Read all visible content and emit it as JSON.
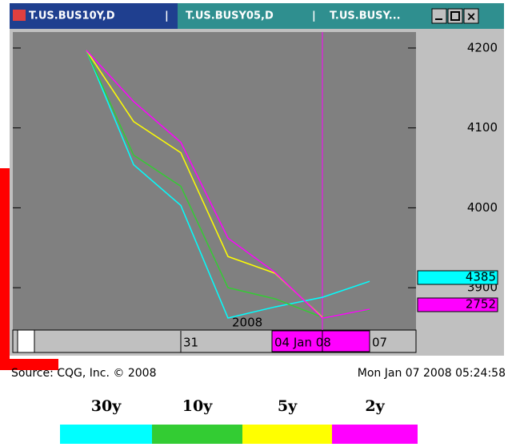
{
  "window": {
    "tabs": [
      "T.US.BUS10Y,D",
      "T.US.BUSY05,D",
      "T.US.BUSY..."
    ]
  },
  "chart_data": {
    "type": "line",
    "categories": [
      null,
      null,
      "31",
      null,
      null,
      "04 Jan 08",
      "07"
    ],
    "annotation": "2008",
    "series": [
      {
        "name": "30y",
        "color": "#00ffff",
        "values": [
          4197,
          4054,
          4003,
          3862,
          3876,
          3888,
          3908
        ]
      },
      {
        "name": "10y",
        "color": "#33cc33",
        "values": [
          4197,
          4066,
          4027,
          3900,
          3886,
          3863,
          3872
        ]
      },
      {
        "name": "5y",
        "color": "#ffff00",
        "values": [
          4197,
          4108,
          4069,
          3939,
          3918,
          3863,
          null
        ]
      },
      {
        "name": "2y",
        "color": "#ff00ff",
        "values": [
          4197,
          4133,
          4082,
          3962,
          3919,
          3862,
          3873
        ]
      }
    ],
    "ylim": [
      3847,
      4220
    ],
    "yticks": [
      3900,
      4000,
      4100,
      4200
    ],
    "price_tags": [
      {
        "text": "4385",
        "color": "#00ffff"
      },
      {
        "text": "2752",
        "color": "#ff00ff"
      }
    ]
  },
  "footer": {
    "source": "Source: CQG, Inc. © 2008",
    "timestamp": "Mon Jan 07 2008 05:24:58"
  }
}
